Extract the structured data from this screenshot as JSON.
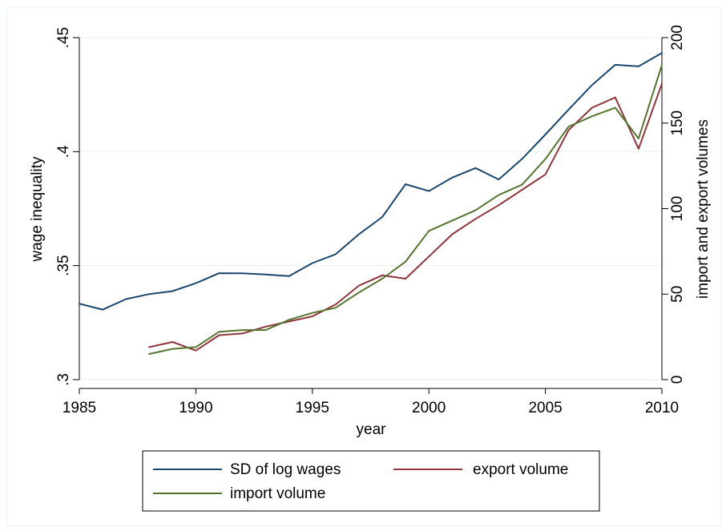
{
  "chart_data": {
    "type": "line",
    "xlabel": "year",
    "ylabel_left": "wage inequality",
    "ylabel_right": "import and export volumes",
    "xlim": [
      1985,
      2010
    ],
    "ylim_left": [
      0.3,
      0.45
    ],
    "ylim_right": [
      0,
      200
    ],
    "x_ticks": [
      1985,
      1990,
      1995,
      2000,
      2005,
      2010
    ],
    "x_tick_labels": [
      "1985",
      "1990",
      "1995",
      "2000",
      "2005",
      "2010"
    ],
    "y_left_ticks": [
      0.3,
      0.35,
      0.4,
      0.45
    ],
    "y_left_tick_labels": [
      ".3",
      ".35",
      ".4",
      ".45"
    ],
    "y_right_ticks": [
      0,
      50,
      100,
      150,
      200
    ],
    "y_right_tick_labels": [
      "0",
      "50",
      "100",
      "150",
      "200"
    ],
    "grid": "horizontal",
    "legend_position": "bottom",
    "series": [
      {
        "name": "SD of log wages",
        "axis": "left",
        "color": "#1a476f",
        "x": [
          1985,
          1986,
          1987,
          1988,
          1989,
          1990,
          1991,
          1992,
          1993,
          1994,
          1995,
          1996,
          1997,
          1998,
          1999,
          2000,
          2001,
          2002,
          2003,
          2004,
          2005,
          2006,
          2007,
          2008,
          2009,
          2010
        ],
        "values": [
          0.3333,
          0.3307,
          0.3353,
          0.3375,
          0.3388,
          0.3423,
          0.3467,
          0.3466,
          0.3461,
          0.3454,
          0.3511,
          0.355,
          0.3638,
          0.3713,
          0.3857,
          0.3827,
          0.3886,
          0.3928,
          0.3878,
          0.3968,
          0.4075,
          0.4185,
          0.4292,
          0.4381,
          0.4374,
          0.4433
        ]
      },
      {
        "name": "export volume",
        "axis": "right",
        "color": "#90353b",
        "x": [
          1988,
          1989,
          1990,
          1991,
          1992,
          1993,
          1994,
          1995,
          1996,
          1997,
          1998,
          1999,
          2000,
          2001,
          2002,
          2003,
          2004,
          2005,
          2006,
          2007,
          2008,
          2009,
          2010
        ],
        "values": [
          19,
          22,
          17,
          26,
          27,
          31,
          34,
          37,
          44,
          55,
          61,
          59,
          72,
          85,
          94,
          102,
          111,
          120,
          146,
          159,
          165,
          135,
          173
        ]
      },
      {
        "name": "import volume",
        "axis": "right",
        "color": "#55752f",
        "x": [
          1988,
          1989,
          1990,
          1991,
          1992,
          1993,
          1994,
          1995,
          1996,
          1997,
          1998,
          1999,
          2000,
          2001,
          2002,
          2003,
          2004,
          2005,
          2006,
          2007,
          2008,
          2009,
          2010
        ],
        "values": [
          15,
          18,
          19,
          28,
          29,
          29,
          35,
          39,
          42,
          51,
          59,
          69,
          87,
          93,
          99,
          108,
          114,
          129,
          148,
          154,
          159,
          141,
          184
        ]
      }
    ]
  }
}
